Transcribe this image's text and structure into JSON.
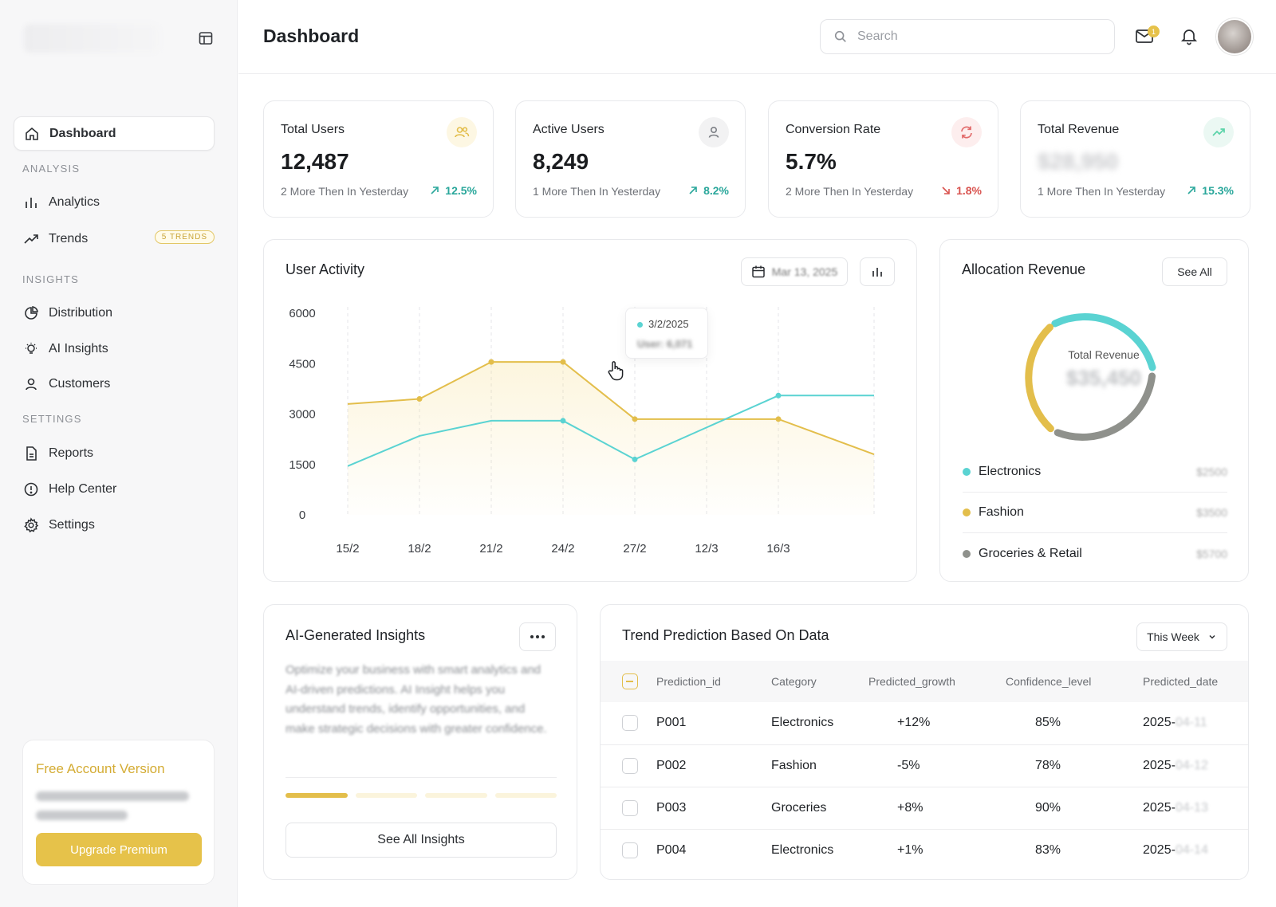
{
  "sidebar": {
    "sections": {
      "analysis": "ANALYSIS",
      "insights": "INSIGHTS",
      "settings": "SETTINGS"
    },
    "items": {
      "dashboard": "Dashboard",
      "analytics": "Analytics",
      "trends": "Trends",
      "trends_badge": "5 TRENDS",
      "distribution": "Distribution",
      "ai_insights": "AI Insights",
      "customers": "Customers",
      "reports": "Reports",
      "help_center": "Help Center",
      "settings": "Settings"
    },
    "upgrade": {
      "title": "Free Account Version",
      "button": "Upgrade Premium"
    }
  },
  "header": {
    "title": "Dashboard",
    "search_placeholder": "Search",
    "mail_badge": "1"
  },
  "stats": [
    {
      "label": "Total Users",
      "value": "12,487",
      "sub": "2 More Then In Yesterday",
      "change": "12.5%",
      "direction": "up",
      "color": "#e6c24a"
    },
    {
      "label": "Active Users",
      "value": "8,249",
      "sub": "1 More Then In Yesterday",
      "change": "8.2%",
      "direction": "up",
      "color": "#8d9096"
    },
    {
      "label": "Conversion Rate",
      "value": "5.7%",
      "sub": "2 More Then In Yesterday",
      "change": "1.8%",
      "direction": "down",
      "color": "#e26b6b"
    },
    {
      "label": "Total Revenue",
      "value": "$28,950",
      "sub": "1 More Then In Yesterday",
      "change": "15.3%",
      "direction": "up",
      "color": "#5ad3a8"
    }
  ],
  "user_activity": {
    "title": "User Activity",
    "date_button": "Mar 13, 2025",
    "tooltip": {
      "date": "3/2/2025",
      "value": "User: 6,071"
    }
  },
  "chart_data": {
    "type": "line",
    "title": "User Activity",
    "xlabel": "",
    "ylabel": "",
    "categories": [
      "15/2",
      "18/2",
      "21/2",
      "24/2",
      "27/2",
      "12/3",
      "16/3"
    ],
    "yticks": [
      "0",
      "1500",
      "3000",
      "4500",
      "6000"
    ],
    "ylim": [
      0,
      6000
    ],
    "grid": "vertical dashed",
    "series": [
      {
        "color": "#e3be4b",
        "values": [
          3300,
          3450,
          4550,
          4550,
          2850,
          2850,
          1800
        ]
      },
      {
        "color": "#5ad3d2",
        "values": [
          1450,
          2350,
          2800,
          2800,
          1650,
          3550,
          3550
        ]
      }
    ],
    "point_x": [
      15,
      18,
      21,
      24,
      27,
      33,
      37
    ],
    "marker_x": [
      18,
      21,
      24,
      27,
      33
    ],
    "teal_marker_x": [
      20,
      24,
      27,
      33
    ]
  },
  "allocation": {
    "title": "Allocation Revenue",
    "see_all": "See All",
    "center_label": "Total Revenue",
    "center_value": "$35,450",
    "items": [
      {
        "name": "Electronics",
        "amount": "$2500",
        "color": "#5ad3d2"
      },
      {
        "name": "Fashion",
        "amount": "$3500",
        "color": "#e3be4b"
      },
      {
        "name": "Groceries & Retail",
        "amount": "$5700",
        "color": "#8f918c"
      }
    ]
  },
  "insights": {
    "title": "AI-Generated Insights",
    "body": "Optimize your business with smart analytics and AI-driven predictions. AI Insight helps you understand trends, identify opportunities, and make strategic decisions with greater confidence.",
    "progress": 0.25,
    "button": "See All Insights"
  },
  "prediction": {
    "title": "Trend Prediction Based On Data",
    "filter": "This Week",
    "columns": [
      "Prediction_id",
      "Category",
      "Predicted_growth",
      "Confidence_level",
      "Predicted_date"
    ],
    "rows": [
      {
        "id": "P001",
        "category": "Electronics",
        "growth": "+12%",
        "confidence": "85%",
        "date_prefix": "2025-",
        "date_rest": "04-11"
      },
      {
        "id": "P002",
        "category": "Fashion",
        "growth": "-5%",
        "confidence": "78%",
        "date_prefix": "2025-",
        "date_rest": "04-12"
      },
      {
        "id": "P003",
        "category": "Groceries",
        "growth": "+8%",
        "confidence": "90%",
        "date_prefix": "2025-",
        "date_rest": "04-13"
      },
      {
        "id": "P004",
        "category": "Electronics",
        "growth": "+1%",
        "confidence": "83%",
        "date_prefix": "2025-",
        "date_rest": "04-14"
      }
    ]
  }
}
